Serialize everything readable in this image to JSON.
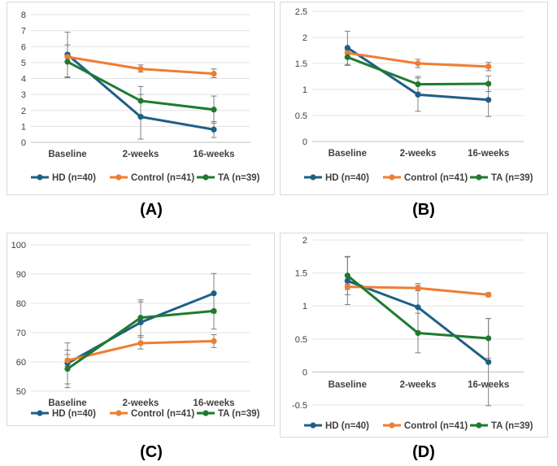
{
  "figure": {
    "series_colors": {
      "HD": "#1f5f86",
      "Control": "#ef7d31",
      "TA": "#1e7b2e"
    }
  },
  "chart_data": [
    {
      "panel": "(A)",
      "type": "line",
      "categories": [
        "Baseline",
        "2-weeks",
        "16-weeks"
      ],
      "ylim": [
        0,
        8
      ],
      "yticks": [
        0,
        1,
        2,
        3,
        4,
        5,
        6,
        7,
        8
      ],
      "ytick_labels": [
        "0",
        "1",
        "2",
        "3",
        "4",
        "5",
        "6",
        "7",
        "8"
      ],
      "grid": true,
      "legend_position": "bottom",
      "series": [
        {
          "name": "HD (n=40)",
          "key": "HD",
          "values": [
            5.5,
            1.6,
            0.8
          ],
          "err_high": [
            6.9,
            3.0,
            1.3
          ],
          "err_low": [
            4.1,
            0.2,
            0.3
          ]
        },
        {
          "name": "Control (n=41)",
          "key": "Control",
          "values": [
            5.35,
            4.6,
            4.3
          ],
          "err_high": [
            5.6,
            4.85,
            4.6
          ],
          "err_low": [
            5.1,
            4.4,
            4.05
          ]
        },
        {
          "name": "TA (n=39)",
          "key": "TA",
          "values": [
            5.05,
            2.6,
            2.05
          ],
          "err_high": [
            6.1,
            3.5,
            2.9
          ],
          "err_low": [
            4.05,
            1.7,
            1.2
          ]
        }
      ]
    },
    {
      "panel": "(B)",
      "type": "line",
      "categories": [
        "Baseline",
        "2-weeks",
        "16-weeks"
      ],
      "ylim": [
        0,
        2.5
      ],
      "yticks": [
        0,
        0.5,
        1,
        1.5,
        2,
        2.5
      ],
      "ytick_labels": [
        "0",
        "0.5",
        "1",
        "1.5",
        "2",
        "2.5"
      ],
      "grid": true,
      "legend_position": "bottom",
      "series": [
        {
          "name": "HD (n=40)",
          "key": "HD",
          "values": [
            1.8,
            0.9,
            0.8
          ],
          "err_high": [
            2.12,
            1.22,
            1.1
          ],
          "err_low": [
            1.48,
            0.58,
            0.48
          ]
        },
        {
          "name": "Control (n=41)",
          "key": "Control",
          "values": [
            1.7,
            1.5,
            1.44
          ],
          "err_high": [
            1.75,
            1.58,
            1.52
          ],
          "err_low": [
            1.62,
            1.42,
            1.36
          ]
        },
        {
          "name": "TA (n=39)",
          "key": "TA",
          "values": [
            1.62,
            1.1,
            1.11
          ],
          "err_high": [
            1.78,
            1.25,
            1.26
          ],
          "err_low": [
            1.46,
            0.95,
            0.96
          ]
        }
      ]
    },
    {
      "panel": "(C)",
      "type": "line",
      "categories": [
        "Baseline",
        "2-weeks",
        "16-weeks"
      ],
      "ylim": [
        50,
        100
      ],
      "yticks": [
        50,
        60,
        70,
        80,
        90,
        100
      ],
      "ytick_labels": [
        "50",
        "60",
        "70",
        "80",
        "90",
        "100"
      ],
      "grid": true,
      "legend_position": "bottom",
      "series": [
        {
          "name": "HD (n=40)",
          "key": "HD",
          "values": [
            59.5,
            73.5,
            83.4
          ],
          "err_high": [
            66.5,
            80.5,
            90.2
          ],
          "err_low": [
            52.5,
            66.5,
            76.6
          ]
        },
        {
          "name": "Control (n=41)",
          "key": "Control",
          "values": [
            60.5,
            66.4,
            67.1
          ],
          "err_high": [
            62.5,
            68.4,
            69.3
          ],
          "err_low": [
            58.5,
            64.4,
            64.9
          ]
        },
        {
          "name": "TA (n=39)",
          "key": "TA",
          "values": [
            57.6,
            75.1,
            77.4
          ],
          "err_high": [
            64.0,
            81.2,
            83.6
          ],
          "err_low": [
            51.2,
            69.0,
            71.2
          ]
        }
      ]
    },
    {
      "panel": "(D)",
      "type": "line",
      "categories": [
        "Baseline",
        "2-weeks",
        "16-weeks"
      ],
      "ylim": [
        -0.5,
        2
      ],
      "yticks": [
        -0.5,
        0,
        0.5,
        1,
        1.5,
        2
      ],
      "ytick_labels": [
        "-0.5",
        "0",
        "0.5",
        "1",
        "1.5",
        "2"
      ],
      "grid": true,
      "legend_position": "bottom",
      "series": [
        {
          "name": "HD (n=40)",
          "key": "HD",
          "values": [
            1.38,
            0.98,
            0.15
          ],
          "err_high": [
            1.74,
            1.34,
            0.81
          ],
          "err_low": [
            1.02,
            0.62,
            -0.51
          ]
        },
        {
          "name": "Control (n=41)",
          "key": "Control",
          "values": [
            1.29,
            1.27,
            1.17
          ],
          "err_high": [
            1.33,
            1.31,
            1.2
          ],
          "err_low": [
            1.25,
            1.23,
            1.14
          ]
        },
        {
          "name": "TA (n=39)",
          "key": "TA",
          "values": [
            1.46,
            0.59,
            0.51
          ],
          "err_high": [
            1.75,
            0.89,
            0.81
          ],
          "err_low": [
            1.17,
            0.29,
            0.21
          ]
        }
      ]
    }
  ]
}
